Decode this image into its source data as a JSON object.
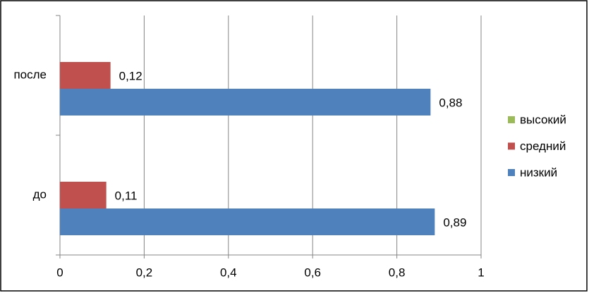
{
  "chart_data": {
    "type": "bar",
    "orientation": "horizontal",
    "categories": [
      "до",
      "после"
    ],
    "series": [
      {
        "name": "низкий",
        "color": "#4f81bd",
        "values": [
          0.89,
          0.88
        ],
        "value_labels": [
          "0,89",
          "0,88"
        ]
      },
      {
        "name": "средний",
        "color": "#c0504d",
        "values": [
          0.11,
          0.12
        ],
        "value_labels": [
          "0,11",
          "0,12"
        ]
      },
      {
        "name": "высокий",
        "color": "#9bbb59",
        "values": [
          null,
          null
        ]
      }
    ],
    "xlim": [
      0,
      1
    ],
    "xticks": [
      0,
      {
        "value": 0.2,
        "label": "0,2"
      },
      {
        "value": 0.4,
        "label": "0,4"
      },
      {
        "value": 0.6,
        "label": "0,6"
      },
      {
        "value": 0.8,
        "label": "0,8"
      },
      1
    ],
    "grid": true,
    "legend": "right"
  }
}
